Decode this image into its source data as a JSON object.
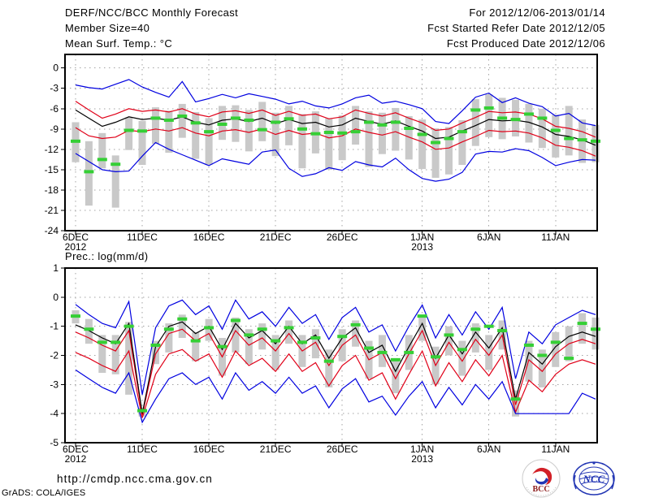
{
  "page": {
    "background": "#ffffff"
  },
  "header": {
    "left": [
      "DERF/NCC/BCC Monthly Forecast",
      "Member Size=40",
      "Mean Surf. Temp.: °C"
    ],
    "right": [
      "For 2012/12/06-2013/01/14",
      "Fcst Started Refer Date 2012/12/05",
      "Fcst Produced Date 2012/12/06"
    ]
  },
  "footer": {
    "url": "http://cmdp.ncc.cma.gov.cn",
    "credit": "GrADS: COLA/IGES",
    "logos": {
      "bcc": "BCC",
      "ncc": "NCC"
    }
  },
  "colors": {
    "blue": "#0000e0",
    "red": "#e00018",
    "black": "#000000",
    "green": "#35cf35",
    "bar_gray": "#c9c9c9",
    "grid_gray": "#a3a3a3"
  },
  "chart_data": [
    {
      "name": "temp",
      "type": "line",
      "title": "Mean Surf. Temp.: °C",
      "ylabel": "°C",
      "ylim": [
        -24,
        2
      ],
      "yticks": [
        0,
        -3,
        -6,
        -9,
        -12,
        -15,
        -18,
        -21,
        -24
      ],
      "grid": true,
      "n_days": 40,
      "x_ticks": [
        {
          "day": 0,
          "label": "6DEC",
          "sub": "2012"
        },
        {
          "day": 5,
          "label": "11DEC"
        },
        {
          "day": 10,
          "label": "16DEC"
        },
        {
          "day": 15,
          "label": "21DEC"
        },
        {
          "day": 20,
          "label": "26DEC"
        },
        {
          "day": 26,
          "label": "1JAN",
          "sub": "2013"
        },
        {
          "day": 31,
          "label": "6JAN"
        },
        {
          "day": 36,
          "label": "11JAN"
        }
      ],
      "series": [
        {
          "name": "blue-max",
          "color": "#0000e0",
          "values": [
            -2.5,
            -2.9,
            -3.1,
            -2.4,
            -1.7,
            -2.8,
            -3.6,
            -4.3,
            -2.0,
            -5.0,
            -4.5,
            -3.9,
            -4.4,
            -3.8,
            -4.2,
            -4.6,
            -5.3,
            -4.9,
            -5.6,
            -5.9,
            -5.3,
            -4.4,
            -4.0,
            -5.2,
            -4.9,
            -5.4,
            -6.0,
            -7.9,
            -8.2,
            -6.3,
            -4.3,
            -3.7,
            -5.1,
            -4.4,
            -5.2,
            -5.7,
            -7.1,
            -6.7,
            -8.1,
            -8.5
          ]
        },
        {
          "name": "red-upper",
          "color": "#e00018",
          "values": [
            -4.9,
            -6.2,
            -7.4,
            -6.8,
            -6.0,
            -6.4,
            -6.2,
            -6.5,
            -6.0,
            -6.8,
            -7.2,
            -6.5,
            -6.3,
            -6.7,
            -6.2,
            -7.0,
            -6.4,
            -7.0,
            -6.8,
            -7.5,
            -7.2,
            -6.2,
            -6.7,
            -7.1,
            -6.6,
            -7.4,
            -8.1,
            -9.2,
            -9.0,
            -8.1,
            -7.3,
            -6.4,
            -6.6,
            -6.5,
            -6.8,
            -7.5,
            -8.6,
            -8.9,
            -9.4,
            -10.2
          ]
        },
        {
          "name": "mean",
          "color": "#000000",
          "values": [
            -6.2,
            -7.4,
            -8.6,
            -8.0,
            -7.2,
            -7.6,
            -7.4,
            -7.7,
            -7.2,
            -8.0,
            -8.4,
            -7.7,
            -7.5,
            -7.9,
            -7.4,
            -8.2,
            -7.6,
            -8.2,
            -8.0,
            -8.7,
            -8.4,
            -7.4,
            -7.9,
            -8.3,
            -7.8,
            -8.6,
            -9.3,
            -10.4,
            -10.2,
            -9.3,
            -8.5,
            -7.6,
            -7.8,
            -7.7,
            -8.0,
            -8.7,
            -9.8,
            -10.1,
            -10.6,
            -11.4
          ]
        },
        {
          "name": "red-lower",
          "color": "#e00018",
          "values": [
            -8.8,
            -10.0,
            -10.4,
            -10.2,
            -9.2,
            -9.4,
            -9.0,
            -9.3,
            -8.8,
            -9.6,
            -10.0,
            -9.3,
            -9.1,
            -9.5,
            -9.0,
            -9.8,
            -9.2,
            -9.8,
            -9.6,
            -10.3,
            -10.0,
            -9.0,
            -9.5,
            -9.9,
            -9.4,
            -10.2,
            -10.9,
            -12.0,
            -11.8,
            -10.9,
            -10.1,
            -9.2,
            -9.4,
            -9.3,
            -9.6,
            -10.3,
            -11.4,
            -11.7,
            -12.2,
            -13.0
          ]
        },
        {
          "name": "blue-min",
          "color": "#0000e0",
          "values": [
            -12.6,
            -13.8,
            -15.0,
            -15.3,
            -15.2,
            -13.0,
            -11.0,
            -12.0,
            -12.8,
            -13.6,
            -14.4,
            -13.4,
            -13.8,
            -14.2,
            -12.4,
            -12.1,
            -14.8,
            -16.0,
            -15.6,
            -14.7,
            -15.1,
            -13.8,
            -14.3,
            -14.6,
            -13.3,
            -15.0,
            -16.3,
            -16.7,
            -16.4,
            -15.4,
            -12.7,
            -12.3,
            -12.4,
            -11.9,
            -12.2,
            -13.2,
            -14.4,
            -13.9,
            -13.5,
            -13.6
          ]
        }
      ],
      "obs": {
        "name": "observation-dash",
        "color": "#35cf35",
        "values": [
          -10.8,
          -15.3,
          -13.5,
          -14.2,
          -9.2,
          -9.3,
          -7.4,
          -7.7,
          -7.1,
          -8.1,
          -9.4,
          -8.3,
          -7.4,
          -7.7,
          -9.1,
          -8.0,
          -7.5,
          -9.0,
          -9.7,
          -9.5,
          -9.6,
          -9.4,
          -8.0,
          -8.4,
          -8.0,
          -8.9,
          -9.8,
          -11.0,
          -10.4,
          -9.4,
          -6.2,
          -5.9,
          -7.4,
          -7.6,
          -6.8,
          -7.4,
          -9.2,
          -10.4,
          -10.6,
          -10.8
        ]
      },
      "bars": {
        "name": "spread-bar",
        "color": "#c9c9c9",
        "ranges": [
          [
            -8.0,
            -13.9
          ],
          [
            -10.8,
            -20.3
          ],
          [
            -9.6,
            -14.8
          ],
          [
            -12.9,
            -20.6
          ],
          [
            -7.3,
            -12.1
          ],
          [
            -7.8,
            -14.3
          ],
          [
            -5.8,
            -11.2
          ],
          [
            -6.3,
            -12.5
          ],
          [
            -5.3,
            -10.3
          ],
          [
            -6.5,
            -13.4
          ],
          [
            -7.4,
            -14.3
          ],
          [
            -5.6,
            -10.6
          ],
          [
            -5.5,
            -10.9
          ],
          [
            -6.2,
            -12.3
          ],
          [
            -5.0,
            -10.8
          ],
          [
            -6.6,
            -13.0
          ],
          [
            -5.6,
            -11.4
          ],
          [
            -6.8,
            -14.8
          ],
          [
            -6.4,
            -12.6
          ],
          [
            -7.4,
            -15.0
          ],
          [
            -7.0,
            -13.6
          ],
          [
            -5.6,
            -11.3
          ],
          [
            -6.4,
            -14.6
          ],
          [
            -6.6,
            -12.7
          ],
          [
            -5.9,
            -12.2
          ],
          [
            -7.1,
            -13.5
          ],
          [
            -7.6,
            -14.9
          ],
          [
            -8.9,
            -16.2
          ],
          [
            -8.7,
            -15.7
          ],
          [
            -7.7,
            -14.3
          ],
          [
            -4.6,
            -11.5
          ],
          [
            -3.9,
            -10.2
          ],
          [
            -4.4,
            -10.5
          ],
          [
            -4.7,
            -10.1
          ],
          [
            -5.3,
            -11.0
          ],
          [
            -6.0,
            -11.8
          ],
          [
            -6.9,
            -13.2
          ],
          [
            -5.6,
            -12.9
          ],
          [
            -7.6,
            -14.0
          ],
          [
            -8.4,
            -13.9
          ]
        ]
      }
    },
    {
      "name": "prec",
      "type": "line",
      "title": "Prec.: log(mm/d)",
      "ylabel": "log(mm/d)",
      "ylim": [
        -5,
        1
      ],
      "yticks": [
        1,
        0,
        -1,
        -2,
        -3,
        -4,
        -5
      ],
      "grid": true,
      "n_days": 40,
      "x_ticks": [
        {
          "day": 0,
          "label": "6DEC",
          "sub": "2012"
        },
        {
          "day": 5,
          "label": "11DEC"
        },
        {
          "day": 10,
          "label": "16DEC"
        },
        {
          "day": 15,
          "label": "21DEC"
        },
        {
          "day": 20,
          "label": "26DEC"
        },
        {
          "day": 26,
          "label": "1JAN",
          "sub": "2013"
        },
        {
          "day": 31,
          "label": "6JAN"
        },
        {
          "day": 36,
          "label": "11JAN"
        }
      ],
      "series": [
        {
          "name": "blue-max",
          "color": "#0000e0",
          "values": [
            -0.25,
            -0.6,
            -0.9,
            -1.05,
            -0.15,
            -3.35,
            -1.05,
            -0.3,
            -0.1,
            -0.6,
            -0.3,
            -1.1,
            -0.1,
            -0.75,
            -0.5,
            -1.0,
            -0.35,
            -0.9,
            -0.6,
            -1.45,
            -0.7,
            -0.35,
            -1.2,
            -0.95,
            -1.85,
            -1.0,
            -0.27,
            -1.4,
            -0.6,
            -1.3,
            -0.5,
            -1.1,
            -0.35,
            -2.8,
            -1.2,
            -1.6,
            -0.95,
            -0.7,
            -0.45,
            -0.6
          ]
        },
        {
          "name": "red-upper",
          "color": "#e00018",
          "values": [
            -1.2,
            -1.4,
            -1.65,
            -1.85,
            -1.15,
            -4.05,
            -1.95,
            -1.25,
            -1.1,
            -1.5,
            -1.25,
            -2.05,
            -1.15,
            -1.65,
            -1.4,
            -1.85,
            -1.25,
            -1.85,
            -1.55,
            -2.35,
            -1.65,
            -1.3,
            -2.15,
            -1.9,
            -2.8,
            -1.95,
            -1.15,
            -2.35,
            -1.55,
            -2.2,
            -1.45,
            -2.0,
            -1.3,
            -3.7,
            -2.15,
            -2.55,
            -1.95,
            -1.6,
            -1.45,
            -1.6
          ]
        },
        {
          "name": "mean",
          "color": "#000000",
          "values": [
            -0.95,
            -1.15,
            -1.4,
            -1.6,
            -0.9,
            -4.0,
            -1.7,
            -1.0,
            -0.85,
            -1.25,
            -1.0,
            -1.8,
            -0.9,
            -1.4,
            -1.15,
            -1.6,
            -1.0,
            -1.6,
            -1.3,
            -2.1,
            -1.4,
            -1.05,
            -1.9,
            -1.65,
            -2.55,
            -1.7,
            -0.9,
            -2.1,
            -1.3,
            -1.95,
            -1.2,
            -1.75,
            -1.05,
            -3.5,
            -1.9,
            -2.3,
            -1.7,
            -1.35,
            -1.2,
            -1.35
          ]
        },
        {
          "name": "red-lower",
          "color": "#e00018",
          "values": [
            -1.9,
            -2.1,
            -2.35,
            -2.55,
            -1.85,
            -4.15,
            -2.65,
            -1.95,
            -1.8,
            -2.2,
            -1.95,
            -2.75,
            -1.85,
            -2.35,
            -2.1,
            -2.55,
            -1.95,
            -2.55,
            -2.25,
            -3.05,
            -2.35,
            -2.0,
            -2.85,
            -2.6,
            -3.5,
            -2.65,
            -1.85,
            -3.05,
            -2.25,
            -2.9,
            -2.15,
            -2.7,
            -2.0,
            -3.95,
            -2.85,
            -3.25,
            -2.65,
            -2.3,
            -2.15,
            -2.3
          ]
        },
        {
          "name": "blue-min",
          "color": "#0000e0",
          "values": [
            -2.5,
            -2.8,
            -3.1,
            -3.3,
            -2.6,
            -4.3,
            -3.5,
            -2.8,
            -2.6,
            -3.0,
            -2.75,
            -3.5,
            -2.6,
            -3.2,
            -2.9,
            -3.3,
            -2.75,
            -3.3,
            -3.05,
            -3.8,
            -3.15,
            -2.8,
            -3.6,
            -3.4,
            -4.05,
            -3.4,
            -2.9,
            -3.8,
            -3.1,
            -3.7,
            -3.0,
            -3.5,
            -2.9,
            -4.0,
            -4.0,
            -4.0,
            -4.0,
            -4.0,
            -3.3,
            -3.5
          ]
        }
      ],
      "obs": {
        "name": "observation-dash",
        "color": "#35cf35",
        "values": [
          -0.65,
          -1.1,
          -1.55,
          -1.55,
          -1.0,
          -3.9,
          -1.65,
          -1.1,
          -0.75,
          -1.5,
          -1.05,
          -1.7,
          -0.8,
          -1.3,
          -1.1,
          -1.5,
          -1.05,
          -1.55,
          -1.4,
          -2.2,
          -1.35,
          -0.95,
          -1.75,
          -1.9,
          -2.15,
          -1.9,
          -0.65,
          -2.05,
          -1.3,
          -1.8,
          -1.1,
          -1.0,
          -1.15,
          -3.5,
          -1.65,
          -2.0,
          -1.55,
          -2.1,
          -0.9,
          -1.1
        ]
      },
      "bars": {
        "name": "spread-bar",
        "color": "#c9c9c9",
        "ranges": [
          [
            -0.45,
            -0.9
          ],
          [
            -0.75,
            -1.6
          ],
          [
            -1.3,
            -2.6
          ],
          [
            -1.3,
            -2.65
          ],
          [
            -0.85,
            -3.35
          ],
          [
            -3.8,
            -4.1
          ],
          [
            -1.5,
            -2.3
          ],
          [
            -0.9,
            -1.9
          ],
          [
            -0.6,
            -1.4
          ],
          [
            -1.2,
            -2.2
          ],
          [
            -0.75,
            -1.5
          ],
          [
            -1.4,
            -2.7
          ],
          [
            -0.7,
            -1.9
          ],
          [
            -1.1,
            -2.3
          ],
          [
            -0.9,
            -1.8
          ],
          [
            -1.3,
            -2.5
          ],
          [
            -0.8,
            -1.6
          ],
          [
            -1.3,
            -2.4
          ],
          [
            -1.1,
            -2.1
          ],
          [
            -1.8,
            -3.1
          ],
          [
            -1.1,
            -2.2
          ],
          [
            -0.8,
            -1.7
          ],
          [
            -1.5,
            -2.8
          ],
          [
            -1.3,
            -2.4
          ],
          [
            -2.1,
            -3.3
          ],
          [
            -1.3,
            -2.5
          ],
          [
            -0.6,
            -1.5
          ],
          [
            -1.7,
            -3.0
          ],
          [
            -1.0,
            -2.0
          ],
          [
            -1.5,
            -2.7
          ],
          [
            -0.9,
            -1.9
          ],
          [
            -1.3,
            -2.5
          ],
          [
            -0.8,
            -1.8
          ],
          [
            -3.2,
            -4.1
          ],
          [
            -1.5,
            -2.9
          ],
          [
            -1.8,
            -3.1
          ],
          [
            -1.2,
            -2.4
          ],
          [
            -1.0,
            -2.2
          ],
          [
            -0.55,
            -1.6
          ],
          [
            -0.7,
            -1.8
          ]
        ]
      }
    }
  ]
}
